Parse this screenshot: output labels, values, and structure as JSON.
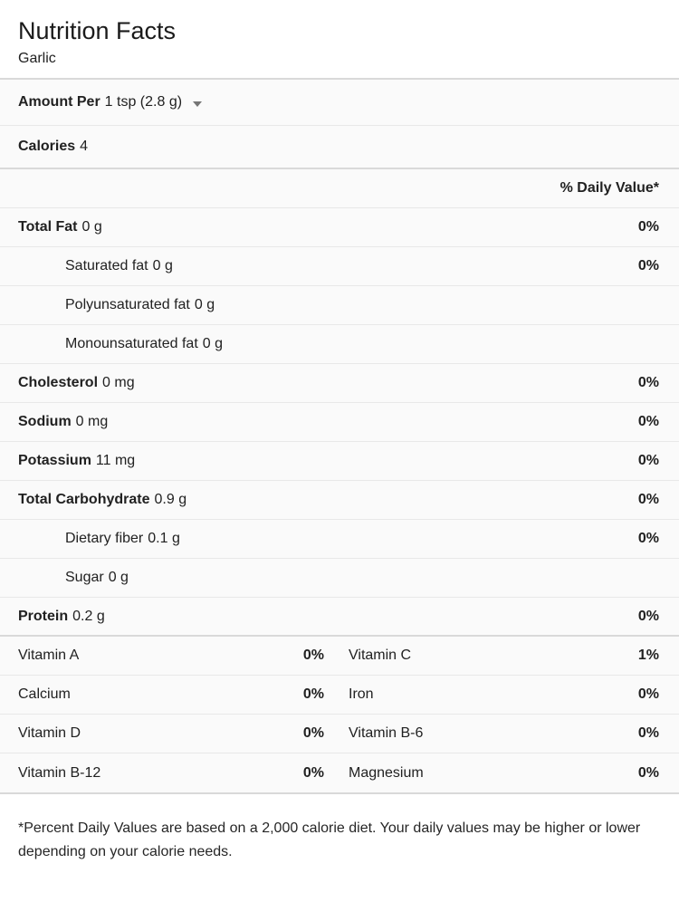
{
  "panel": {
    "title": "Nutrition Facts",
    "subtitle": "Garlic",
    "serving": {
      "label": "Amount Per",
      "value": "1 tsp (2.8 g)"
    },
    "calories": {
      "label": "Calories",
      "value": "4"
    },
    "daily_value_header": "% Daily Value*",
    "rows": [
      {
        "label": "Total Fat",
        "amount": "0 g",
        "dv": "0%",
        "bold": true,
        "indent": false,
        "section_end": false
      },
      {
        "label": "Saturated fat",
        "amount": "0 g",
        "dv": "0%",
        "bold": false,
        "indent": true,
        "section_end": false
      },
      {
        "label": "Polyunsaturated fat",
        "amount": "0 g",
        "dv": "",
        "bold": false,
        "indent": true,
        "section_end": false
      },
      {
        "label": "Monounsaturated fat",
        "amount": "0 g",
        "dv": "",
        "bold": false,
        "indent": true,
        "section_end": false
      },
      {
        "label": "Cholesterol",
        "amount": "0 mg",
        "dv": "0%",
        "bold": true,
        "indent": false,
        "section_end": false
      },
      {
        "label": "Sodium",
        "amount": "0 mg",
        "dv": "0%",
        "bold": true,
        "indent": false,
        "section_end": false
      },
      {
        "label": "Potassium",
        "amount": "11 mg",
        "dv": "0%",
        "bold": true,
        "indent": false,
        "section_end": false
      },
      {
        "label": "Total Carbohydrate",
        "amount": "0.9 g",
        "dv": "0%",
        "bold": true,
        "indent": false,
        "section_end": false
      },
      {
        "label": "Dietary fiber",
        "amount": "0.1 g",
        "dv": "0%",
        "bold": false,
        "indent": true,
        "section_end": false
      },
      {
        "label": "Sugar",
        "amount": "0 g",
        "dv": "",
        "bold": false,
        "indent": true,
        "section_end": false
      },
      {
        "label": "Protein",
        "amount": "0.2 g",
        "dv": "0%",
        "bold": true,
        "indent": false,
        "section_end": true
      }
    ],
    "micronutrients": [
      {
        "left": {
          "label": "Vitamin A",
          "dv": "0%"
        },
        "right": {
          "label": "Vitamin C",
          "dv": "1%"
        }
      },
      {
        "left": {
          "label": "Calcium",
          "dv": "0%"
        },
        "right": {
          "label": "Iron",
          "dv": "0%"
        }
      },
      {
        "left": {
          "label": "Vitamin D",
          "dv": "0%"
        },
        "right": {
          "label": "Vitamin B-6",
          "dv": "0%"
        }
      },
      {
        "left": {
          "label": "Vitamin B-12",
          "dv": "0%"
        },
        "right": {
          "label": "Magnesium",
          "dv": "0%"
        }
      }
    ],
    "footnote": "*Percent Daily Values are based on a 2,000 calorie diet. Your daily values may be higher or lower depending on your calorie needs."
  },
  "colors": {
    "text": "#212121",
    "row_background": "#fafafa",
    "separator_light": "#e8e8e8",
    "separator_section": "#d9d9d9",
    "caret": "#757575",
    "background": "#ffffff"
  }
}
